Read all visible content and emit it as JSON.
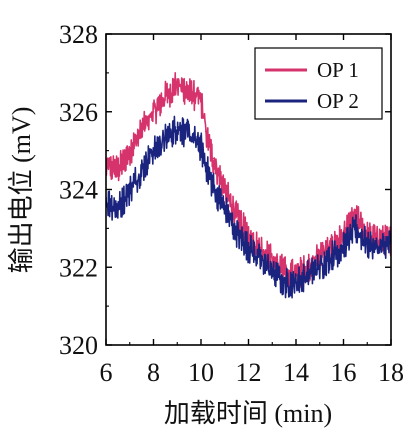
{
  "chart_data": {
    "type": "line",
    "title": "",
    "xlabel": "加载时间 (min)",
    "ylabel": "输出电位 (mV)",
    "xlim": [
      6,
      18
    ],
    "ylim": [
      320,
      328
    ],
    "xticks": [
      "6",
      "8",
      "10",
      "12",
      "14",
      "16",
      "18"
    ],
    "yticks": [
      "320",
      "322",
      "324",
      "326",
      "328"
    ],
    "grid": false,
    "legend_position": "top-right",
    "x": [
      6.0,
      6.5,
      7.0,
      7.5,
      8.0,
      8.5,
      9.0,
      9.5,
      10.0,
      10.2,
      10.5,
      11.0,
      11.5,
      12.0,
      12.5,
      13.0,
      13.5,
      14.0,
      14.5,
      15.0,
      15.5,
      16.0,
      16.5,
      17.0,
      17.5,
      18.0
    ],
    "series": [
      {
        "name": "OP 1",
        "color": "#d6336c",
        "values": [
          324.6,
          324.5,
          325.0,
          325.5,
          326.0,
          326.4,
          326.7,
          326.5,
          326.3,
          325.5,
          324.8,
          324.0,
          323.3,
          322.8,
          322.5,
          322.2,
          321.9,
          321.8,
          322.0,
          322.3,
          322.5,
          322.8,
          323.3,
          322.8,
          322.7,
          322.7
        ]
      },
      {
        "name": "OP 2",
        "color": "#1a237e",
        "values": [
          323.7,
          323.5,
          324.0,
          324.5,
          325.0,
          325.3,
          325.6,
          325.4,
          325.1,
          324.6,
          324.1,
          323.5,
          322.9,
          322.5,
          322.2,
          321.9,
          321.6,
          321.6,
          321.8,
          322.0,
          322.3,
          322.5,
          323.0,
          322.6,
          322.5,
          322.6
        ]
      }
    ]
  }
}
